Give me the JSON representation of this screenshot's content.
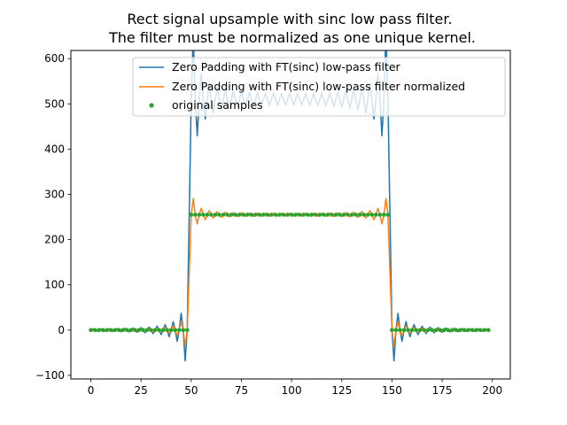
{
  "chart_data": {
    "type": "line",
    "title_lines": [
      "Rect signal upsample with sinc low pass filter.",
      "The filter must be normalized as one unique kernel."
    ],
    "xlabel": "",
    "ylabel": "",
    "xlim": [
      -9.95,
      208.95
    ],
    "ylim": [
      -108,
      618
    ],
    "xticks": [
      0,
      25,
      50,
      75,
      100,
      125,
      150,
      175,
      200
    ],
    "xtick_labels": [
      "0",
      "25",
      "50",
      "75",
      "100",
      "125",
      "150",
      "175",
      "200"
    ],
    "yticks": [
      -100,
      0,
      100,
      200,
      300,
      400,
      500,
      600
    ],
    "ytick_labels": [
      "−100",
      "0",
      "100",
      "200",
      "300",
      "400",
      "500",
      "600"
    ],
    "grid": false,
    "legend_position": "top-right",
    "rect": {
      "low": 0,
      "high": 255,
      "start": 50,
      "end": 150,
      "samples_start": 0,
      "samples_end": 198,
      "sample_step": 2
    },
    "series": [
      {
        "name": "Zero Padding with FT(sinc) low-pass filter",
        "color": "#1f77b4",
        "style": "line",
        "shape": "ringing rect",
        "amplitude": 510,
        "overshoot_peak": 575,
        "undershoot_min": -70,
        "x_start": 0,
        "x_end": 199
      },
      {
        "name": "Zero Padding with FT(sinc) low-pass filter normalized",
        "color": "#ff7f0e",
        "style": "line",
        "shape": "ringing rect",
        "amplitude": 255,
        "overshoot_peak": 290,
        "undershoot_min": -20,
        "x_start": 0,
        "x_end": 199
      },
      {
        "name": "original samples",
        "color": "#2ca02c",
        "style": "markers",
        "shape": "even samples of rect",
        "amplitude": 255,
        "x_start": 0,
        "x_end": 198
      }
    ]
  }
}
